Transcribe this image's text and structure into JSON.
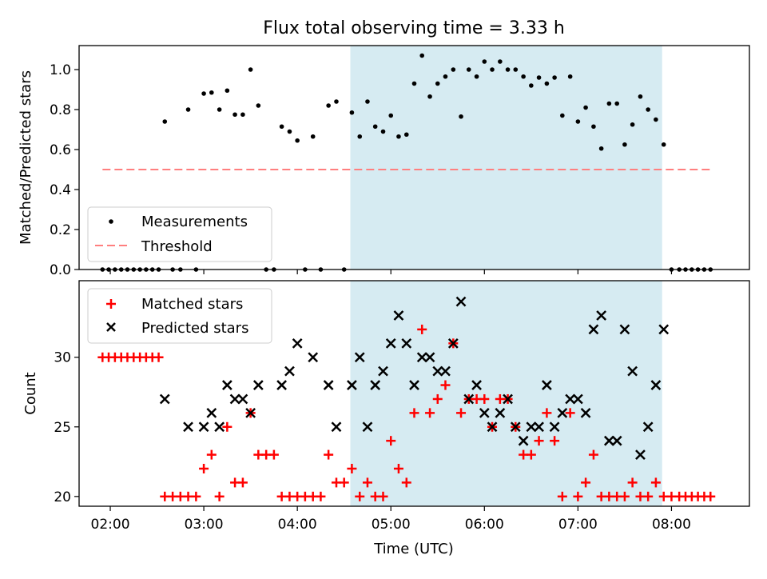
{
  "chart_data": {
    "type": "scatter",
    "title": "Flux total observing time = 3.33 h",
    "xlabel": "Time (UTC)",
    "x_ticks": [
      "02:00",
      "03:00",
      "04:00",
      "05:00",
      "06:00",
      "07:00",
      "08:00"
    ],
    "x_tick_values": [
      2,
      3,
      4,
      5,
      6,
      7,
      8
    ],
    "xlim": [
      1.6667,
      8.8333
    ],
    "observing_window": {
      "start": 4.5667,
      "end": 7.9,
      "color": "#add8e6"
    },
    "colors": {
      "measurements": "#000000",
      "threshold": "#ff7f7f",
      "matched": "#ff0000",
      "predicted": "#000000",
      "window": "#add8e6"
    },
    "panels": [
      {
        "ylabel": "Matched/Predicted stars",
        "ylim": [
          0,
          1.12
        ],
        "y_ticks": [
          "0.0",
          "0.2",
          "0.4",
          "0.6",
          "0.8",
          "1.0"
        ],
        "y_tick_values": [
          0,
          0.2,
          0.4,
          0.6,
          0.8,
          1.0
        ],
        "legend_position": "lower-left",
        "series": [
          {
            "name": "Measurements",
            "kind": "points",
            "x": [
              1.917,
              1.983,
              2.05,
              2.117,
              2.183,
              2.25,
              2.317,
              2.383,
              2.45,
              2.517,
              2.583,
              2.667,
              2.75,
              2.833,
              2.917,
              3.0,
              3.083,
              3.167,
              3.25,
              3.333,
              3.417,
              3.5,
              3.583,
              3.667,
              3.75,
              3.833,
              3.917,
              4.0,
              4.083,
              4.167,
              4.25,
              4.333,
              4.417,
              4.5,
              4.583,
              4.667,
              4.75,
              4.833,
              4.917,
              5.0,
              5.083,
              5.167,
              5.25,
              5.333,
              5.417,
              5.5,
              5.583,
              5.667,
              5.75,
              5.833,
              5.917,
              6.0,
              6.083,
              6.167,
              6.25,
              6.333,
              6.417,
              6.5,
              6.583,
              6.667,
              6.75,
              6.833,
              6.917,
              7.0,
              7.083,
              7.167,
              7.25,
              7.333,
              7.417,
              7.5,
              7.583,
              7.667,
              7.75,
              7.833,
              7.917,
              8.0,
              8.083,
              8.15,
              8.217,
              8.283,
              8.35,
              8.417
            ],
            "values": [
              0,
              0,
              0,
              0,
              0,
              0,
              0,
              0,
              0,
              0,
              0.74,
              0,
              0,
              0.8,
              0,
              0.88,
              0.885,
              0.8,
              0.895,
              0.775,
              0.775,
              1.0,
              0.82,
              0,
              0,
              0.715,
              0.69,
              0.645,
              0,
              0.665,
              0,
              0.82,
              0.84,
              0,
              0.785,
              0.665,
              0.84,
              0.715,
              0.69,
              0.77,
              0.665,
              0.675,
              0.93,
              1.07,
              0.865,
              0.93,
              0.965,
              1.0,
              0.765,
              1.0,
              0.965,
              1.04,
              1.0,
              1.04,
              1.0,
              1.0,
              0.965,
              0.92,
              0.96,
              0.93,
              0.96,
              0.77,
              0.965,
              0.74,
              0.81,
              0.715,
              0.605,
              0.83,
              0.83,
              0.625,
              0.725,
              0.865,
              0.8,
              0.75,
              0.625,
              0,
              0,
              0,
              0,
              0,
              0,
              0
            ]
          },
          {
            "name": "Threshold",
            "kind": "dashed-line",
            "x": [
              1.917,
              8.417
            ],
            "values": [
              0.5,
              0.5
            ]
          }
        ]
      },
      {
        "ylabel": "Count",
        "ylim": [
          19.3,
          35.5
        ],
        "y_ticks": [
          "20",
          "25",
          "30"
        ],
        "y_tick_values": [
          20,
          25,
          30
        ],
        "legend_position": "top-left",
        "series": [
          {
            "name": "Matched stars",
            "kind": "plus",
            "x": [
              1.917,
              1.983,
              2.05,
              2.117,
              2.183,
              2.25,
              2.317,
              2.383,
              2.45,
              2.517,
              2.583,
              2.667,
              2.75,
              2.833,
              2.917,
              3.0,
              3.083,
              3.167,
              3.25,
              3.333,
              3.417,
              3.5,
              3.583,
              3.667,
              3.75,
              3.833,
              3.917,
              4.0,
              4.083,
              4.167,
              4.25,
              4.333,
              4.417,
              4.5,
              4.583,
              4.667,
              4.75,
              4.833,
              4.917,
              5.0,
              5.083,
              5.167,
              5.25,
              5.333,
              5.417,
              5.5,
              5.583,
              5.667,
              5.75,
              5.833,
              5.917,
              6.0,
              6.083,
              6.167,
              6.25,
              6.333,
              6.417,
              6.5,
              6.583,
              6.667,
              6.75,
              6.833,
              6.917,
              7.0,
              7.083,
              7.167,
              7.25,
              7.333,
              7.417,
              7.5,
              7.583,
              7.667,
              7.75,
              7.833,
              7.917,
              8.0,
              8.083,
              8.15,
              8.217,
              8.283,
              8.35,
              8.417
            ],
            "values": [
              30,
              30,
              30,
              30,
              30,
              30,
              30,
              30,
              30,
              30,
              20,
              20,
              20,
              20,
              20,
              22,
              23,
              20,
              25,
              21,
              21,
              26,
              23,
              23,
              23,
              20,
              20,
              20,
              20,
              20,
              20,
              23,
              21,
              21,
              22,
              20,
              21,
              20,
              20,
              24,
              22,
              21,
              26,
              32,
              26,
              27,
              28,
              31,
              26,
              27,
              27,
              27,
              25,
              27,
              27,
              25,
              23,
              23,
              24,
              26,
              24,
              20,
              26,
              20,
              21,
              23,
              20,
              20,
              20,
              20,
              21,
              20,
              20,
              21,
              20,
              20,
              20,
              20,
              20,
              20,
              20,
              20
            ]
          },
          {
            "name": "Predicted stars",
            "kind": "cross",
            "x": [
              2.583,
              2.833,
              3.0,
              3.083,
              3.167,
              3.25,
              3.333,
              3.417,
              3.5,
              3.583,
              3.833,
              3.917,
              4.0,
              4.167,
              4.333,
              4.417,
              4.583,
              4.667,
              4.75,
              4.833,
              4.917,
              5.0,
              5.083,
              5.167,
              5.25,
              5.333,
              5.417,
              5.5,
              5.583,
              5.667,
              5.75,
              5.833,
              5.917,
              6.0,
              6.083,
              6.167,
              6.25,
              6.333,
              6.417,
              6.5,
              6.583,
              6.667,
              6.75,
              6.833,
              6.917,
              7.0,
              7.083,
              7.167,
              7.25,
              7.333,
              7.417,
              7.5,
              7.583,
              7.667,
              7.75,
              7.833,
              7.917
            ],
            "values": [
              27,
              25,
              25,
              26,
              25,
              28,
              27,
              27,
              26,
              28,
              28,
              29,
              31,
              30,
              28,
              25,
              28,
              30,
              25,
              28,
              29,
              31,
              33,
              31,
              28,
              30,
              30,
              29,
              29,
              31,
              34,
              27,
              28,
              26,
              25,
              26,
              27,
              25,
              24,
              25,
              25,
              28,
              25,
              26,
              27,
              27,
              26,
              32,
              33,
              24,
              24,
              32,
              29,
              23,
              25,
              28,
              32
            ]
          }
        ]
      }
    ]
  }
}
